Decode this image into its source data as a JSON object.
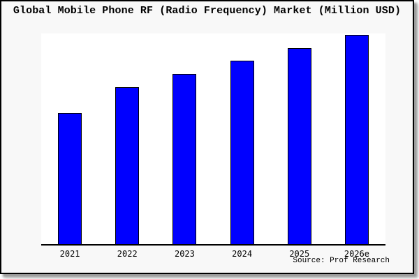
{
  "card": {
    "background": "#f8f8f8",
    "frame_color": "#000000"
  },
  "chart": {
    "title": "Global Mobile Phone RF (Radio Frequency) Market (Million USD)",
    "source_note": "Source: Prof Research",
    "plot_background": "#ffffff",
    "bar_color": "#0000ff",
    "bar_border_color": "#000000",
    "axis_color": "#000000"
  },
  "chart_data": {
    "type": "bar",
    "title": "Global Mobile Phone RF (Radio Frequency) Market (Million USD)",
    "categories": [
      "2021",
      "2022",
      "2023",
      "2024",
      "2025",
      "2026e"
    ],
    "values": [
      62.7,
      75.0,
      81.4,
      87.7,
      93.7,
      100.0
    ],
    "xlabel": "",
    "ylabel": "",
    "ylim": [
      0,
      100.8
    ],
    "grid": false,
    "legend": false,
    "y_axis_shown": false,
    "values_note": "No y-axis scale is shown in the image; values are a relative index (2026e = 100) estimated from bar heights.",
    "annotations": [
      "Source: Prof Research"
    ]
  }
}
